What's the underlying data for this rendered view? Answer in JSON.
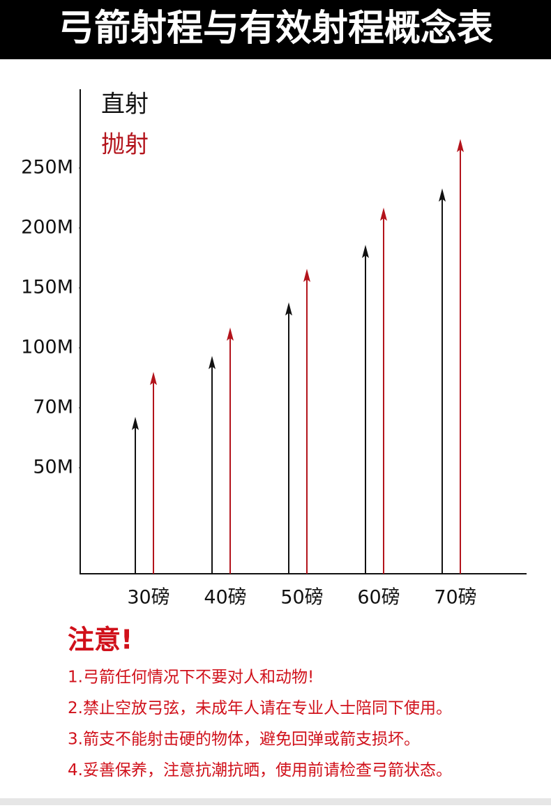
{
  "chart_data": {
    "type": "arrow",
    "title": "弓箭射程与有效射程概念表",
    "categories": [
      "30磅",
      "40磅",
      "50磅",
      "60磅",
      "70磅"
    ],
    "series": [
      {
        "name": "直射",
        "color": "#111111",
        "values": [
          67,
          96,
          138,
          186,
          233
        ]
      },
      {
        "name": "抛射",
        "color": "#b3131b",
        "values": [
          88,
          117,
          166,
          217,
          274
        ]
      }
    ],
    "ylim": [
      0,
      315
    ],
    "yticks": [
      {
        "value": 50,
        "label": "50M"
      },
      {
        "value": 70,
        "label": "70M"
      },
      {
        "value": 100,
        "label": "100M"
      },
      {
        "value": 150,
        "label": "150M"
      },
      {
        "value": 200,
        "label": "200M"
      },
      {
        "value": 250,
        "label": "250M"
      }
    ],
    "legend": "top-left"
  },
  "notes": {
    "heading": "注意!",
    "items": [
      "1.弓箭任何情况下不要对人和动物!",
      "2.禁止空放弓弦，未成年人请在专业人士陪同下使用。",
      "3.箭支不能射击硬的物体，避免回弹或箭支损坏。",
      "4.妥善保养，注意抗潮抗晒，使用前请检查弓箭状态。"
    ]
  }
}
